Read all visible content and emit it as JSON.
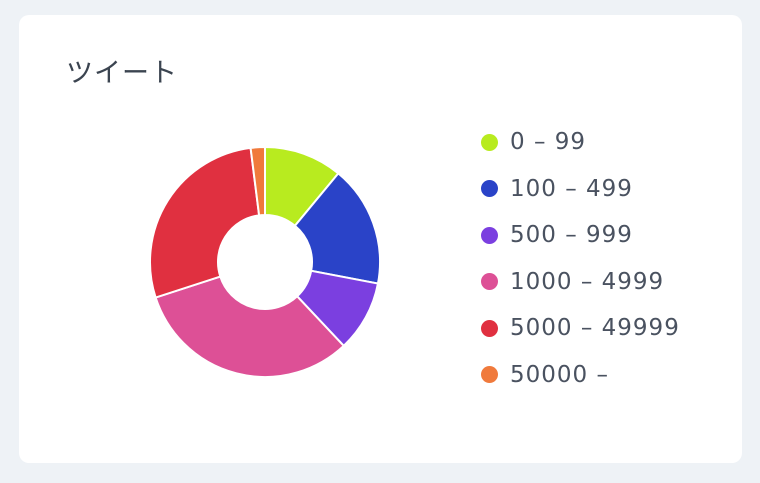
{
  "card": {
    "title": "ツイート"
  },
  "chart_data": {
    "type": "pie",
    "hole": "donut",
    "title": "ツイート",
    "categories": [
      "0 – 99",
      "100 – 499",
      "500 – 999",
      "1000 – 4999",
      "5000 – 49999",
      "50000 –"
    ],
    "values": [
      11,
      17,
      10,
      32,
      28,
      2
    ],
    "value_unit": "percent",
    "colors": [
      "#b8eb1f",
      "#2a43c8",
      "#7b3fe0",
      "#dd5096",
      "#e03040",
      "#f07a3c"
    ],
    "legend_position": "right"
  }
}
